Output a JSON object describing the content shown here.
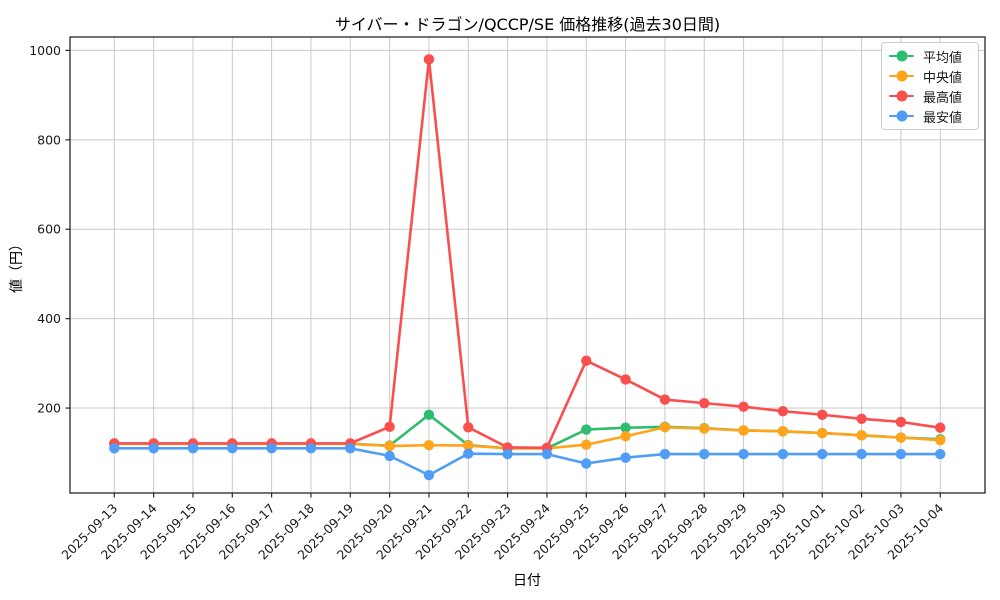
{
  "chart_data": {
    "type": "line",
    "title": "サイバー・ドラゴン/QCCP/SE 価格推移(過去30日間)",
    "xlabel": "日付",
    "ylabel": "値（円）",
    "ylim": [
      10,
      1030
    ],
    "yticks": [
      200,
      400,
      600,
      800,
      1000
    ],
    "grid": true,
    "legend_position": "upper right",
    "categories": [
      "2025-09-13",
      "2025-09-14",
      "2025-09-15",
      "2025-09-16",
      "2025-09-17",
      "2025-09-18",
      "2025-09-19",
      "2025-09-20",
      "2025-09-21",
      "2025-09-22",
      "2025-09-23",
      "2025-09-24",
      "2025-09-25",
      "2025-09-26",
      "2025-09-27",
      "2025-09-28",
      "2025-09-29",
      "2025-09-30",
      "2025-10-01",
      "2025-10-02",
      "2025-10-03",
      "2025-10-04"
    ],
    "series": [
      {
        "name": "平均値",
        "color": "#2ebd6e",
        "values": [
          120,
          120,
          120,
          120,
          120,
          120,
          120,
          116,
          185,
          117,
          110,
          110,
          152,
          156,
          158,
          155,
          150,
          148,
          144,
          139,
          134,
          130
        ]
      },
      {
        "name": "中央値",
        "color": "#ffa41b",
        "values": [
          120,
          120,
          120,
          120,
          120,
          120,
          120,
          115,
          117,
          116,
          110,
          110,
          118,
          137,
          157,
          154,
          150,
          148,
          144,
          139,
          134,
          128
        ]
      },
      {
        "name": "最高値",
        "color": "#f94f4f",
        "values": [
          121,
          121,
          121,
          121,
          121,
          121,
          121,
          158,
          980,
          157,
          112,
          111,
          306,
          264,
          219,
          211,
          203,
          193,
          185,
          176,
          169,
          156
        ]
      },
      {
        "name": "最安値",
        "color": "#4f9df7",
        "values": [
          110,
          110,
          110,
          110,
          110,
          110,
          110,
          93,
          50,
          98,
          97,
          97,
          76,
          89,
          97,
          97,
          97,
          97,
          97,
          97,
          97,
          97
        ]
      }
    ]
  },
  "colors": {
    "background": "#ffffff",
    "grid": "#c9c9c9",
    "spine": "#262626",
    "tick_text": "#1a1a1a",
    "legend_border": "#cccccc"
  }
}
